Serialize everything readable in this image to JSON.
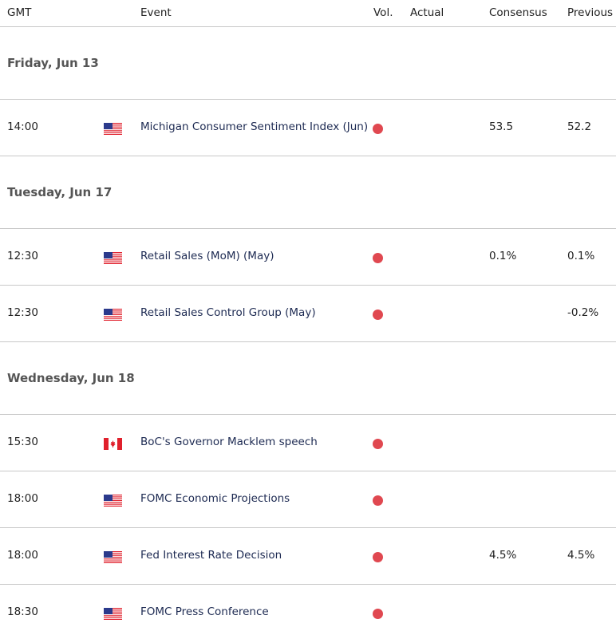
{
  "columns": {
    "gmt": "GMT",
    "event": "Event",
    "vol": "Vol.",
    "actual": "Actual",
    "consensus": "Consensus",
    "previous": "Previous"
  },
  "colors": {
    "high_volatility": "#e04850",
    "event_text": "#1d2a52"
  },
  "sections": [
    {
      "date": "Friday, Jun 13",
      "events": [
        {
          "time": "14:00",
          "country": "us-flag",
          "event": "Michigan Consumer Sentiment Index (Jun)",
          "actual": "",
          "consensus": "53.5",
          "previous": "52.2",
          "volatility": "high"
        }
      ]
    },
    {
      "date": "Tuesday, Jun 17",
      "events": [
        {
          "time": "12:30",
          "country": "us-flag",
          "event": "Retail Sales (MoM) (May)",
          "actual": "",
          "consensus": "0.1%",
          "previous": "0.1%",
          "volatility": "high"
        },
        {
          "time": "12:30",
          "country": "us-flag",
          "event": "Retail Sales Control Group (May)",
          "actual": "",
          "consensus": "",
          "previous": "-0.2%",
          "volatility": "high"
        }
      ]
    },
    {
      "date": "Wednesday, Jun 18",
      "events": [
        {
          "time": "15:30",
          "country": "ca-flag",
          "event": "BoC's Governor Macklem speech",
          "actual": "",
          "consensus": "",
          "previous": "",
          "volatility": "high"
        },
        {
          "time": "18:00",
          "country": "us-flag",
          "event": "FOMC Economic Projections",
          "actual": "",
          "consensus": "",
          "previous": "",
          "volatility": "high"
        },
        {
          "time": "18:00",
          "country": "us-flag",
          "event": "Fed Interest Rate Decision",
          "actual": "",
          "consensus": "4.5%",
          "previous": "4.5%",
          "volatility": "high"
        },
        {
          "time": "18:30",
          "country": "us-flag",
          "event": "FOMC Press Conference",
          "actual": "",
          "consensus": "",
          "previous": "",
          "volatility": "high"
        }
      ]
    }
  ]
}
